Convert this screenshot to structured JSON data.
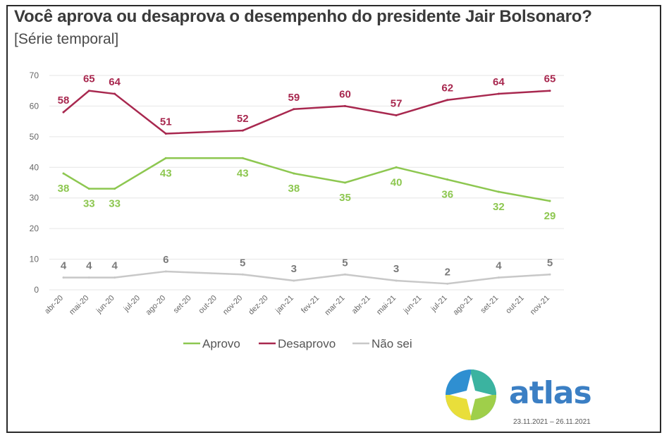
{
  "title": "Você aprova ou desaprova o desempenho do presidente Jair Bolsonaro?",
  "subtitle": "[Série temporal]",
  "logo": {
    "name": "atlas",
    "dates": "23.11.2021 – 26.11.2021",
    "icon": "atlas-logo-icon"
  },
  "colors": {
    "aprovo": "#8dc750",
    "desaprovo": "#a8284f",
    "nao_sei": "#c8c8c8",
    "grid": "#e6e6e6",
    "axis_text": "#666666"
  },
  "chart_data": {
    "type": "line",
    "title": "Você aprova ou desaprova o desempenho do presidente Jair Bolsonaro?",
    "subtitle": "[Série temporal]",
    "x": [
      "abr-20",
      "mai-20",
      "jun-20",
      "jul-20",
      "ago-20",
      "set-20",
      "out-20",
      "nov-20",
      "dez-20",
      "jan-21",
      "fev-21",
      "mar-21",
      "abr-21",
      "mai-21",
      "jun-21",
      "jul-21",
      "ago-21",
      "set-21",
      "out-21",
      "nov-21"
    ],
    "ylim": [
      0,
      70
    ],
    "yticks": [
      0,
      10,
      20,
      30,
      40,
      50,
      60,
      70
    ],
    "grid": true,
    "legend": "bottom",
    "series": [
      {
        "name": "Aprovo",
        "color": "#8dc750",
        "label_pos": "below",
        "points": [
          [
            "abr-20",
            38
          ],
          [
            "mai-20",
            33
          ],
          [
            "jun-20",
            33
          ],
          [
            "ago-20",
            43
          ],
          [
            "nov-20",
            43
          ],
          [
            "jan-21",
            38
          ],
          [
            "mar-21",
            35
          ],
          [
            "mai-21",
            40
          ],
          [
            "jul-21",
            36
          ],
          [
            "set-21",
            32
          ],
          [
            "nov-21",
            29
          ]
        ]
      },
      {
        "name": "Desaprovo",
        "color": "#a8284f",
        "label_pos": "above",
        "points": [
          [
            "abr-20",
            58
          ],
          [
            "mai-20",
            65
          ],
          [
            "jun-20",
            64
          ],
          [
            "ago-20",
            51
          ],
          [
            "nov-20",
            52
          ],
          [
            "jan-21",
            59
          ],
          [
            "mar-21",
            60
          ],
          [
            "mai-21",
            57
          ],
          [
            "jul-21",
            62
          ],
          [
            "set-21",
            64
          ],
          [
            "nov-21",
            65
          ]
        ]
      },
      {
        "name": "Não sei",
        "color": "#c8c8c8",
        "label_pos": "above",
        "points": [
          [
            "abr-20",
            4
          ],
          [
            "mai-20",
            4
          ],
          [
            "jun-20",
            4
          ],
          [
            "ago-20",
            6
          ],
          [
            "nov-20",
            5
          ],
          [
            "jan-21",
            3
          ],
          [
            "mar-21",
            5
          ],
          [
            "mai-21",
            3
          ],
          [
            "jul-21",
            2
          ],
          [
            "set-21",
            4
          ],
          [
            "nov-21",
            5
          ]
        ]
      }
    ]
  }
}
